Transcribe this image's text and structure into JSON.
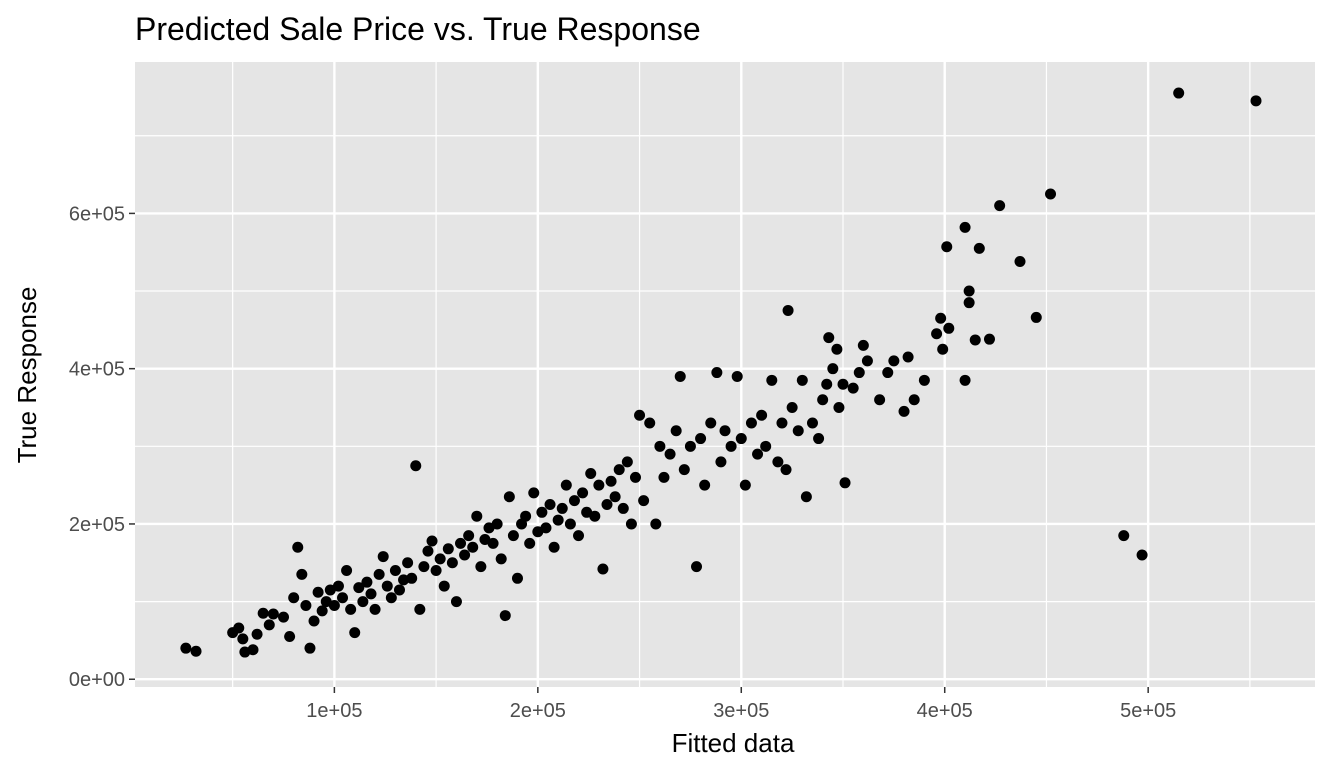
{
  "chart_data": {
    "type": "scatter",
    "title": "Predicted Sale Price vs. True Response",
    "xlabel": "Fitted data",
    "ylabel": "True Response",
    "xlim": [
      2000,
      582000
    ],
    "ylim": [
      -10000,
      795000
    ],
    "x_ticks": [
      {
        "value": 100000,
        "label": "1e+05"
      },
      {
        "value": 200000,
        "label": "2e+05"
      },
      {
        "value": 300000,
        "label": "3e+05"
      },
      {
        "value": 400000,
        "label": "4e+05"
      },
      {
        "value": 500000,
        "label": "5e+05"
      }
    ],
    "y_ticks": [
      {
        "value": 0,
        "label": "0e+00"
      },
      {
        "value": 200000,
        "label": "2e+05"
      },
      {
        "value": 400000,
        "label": "4e+05"
      },
      {
        "value": 600000,
        "label": "6e+05"
      }
    ],
    "grid": true,
    "panel_background": "#e5e5e5",
    "grid_color": "#ffffff",
    "point_color": "#000000",
    "series": [
      {
        "values_note_free": true,
        "points": [
          [
            27000,
            40000
          ],
          [
            32000,
            36000
          ],
          [
            50000,
            60000
          ],
          [
            53000,
            66000
          ],
          [
            55000,
            52000
          ],
          [
            56000,
            35000
          ],
          [
            60000,
            38000
          ],
          [
            62000,
            58000
          ],
          [
            65000,
            85000
          ],
          [
            68000,
            70000
          ],
          [
            70000,
            84000
          ],
          [
            75000,
            80000
          ],
          [
            78000,
            55000
          ],
          [
            80000,
            105000
          ],
          [
            82000,
            170000
          ],
          [
            84000,
            135000
          ],
          [
            86000,
            95000
          ],
          [
            88000,
            40000
          ],
          [
            90000,
            75000
          ],
          [
            92000,
            112000
          ],
          [
            94000,
            88000
          ],
          [
            96000,
            100000
          ],
          [
            98000,
            115000
          ],
          [
            100000,
            95000
          ],
          [
            102000,
            120000
          ],
          [
            104000,
            105000
          ],
          [
            106000,
            140000
          ],
          [
            108000,
            90000
          ],
          [
            110000,
            60000
          ],
          [
            112000,
            118000
          ],
          [
            114000,
            100000
          ],
          [
            116000,
            125000
          ],
          [
            118000,
            110000
          ],
          [
            120000,
            90000
          ],
          [
            122000,
            135000
          ],
          [
            124000,
            158000
          ],
          [
            126000,
            120000
          ],
          [
            128000,
            105000
          ],
          [
            130000,
            140000
          ],
          [
            132000,
            115000
          ],
          [
            134000,
            128000
          ],
          [
            136000,
            150000
          ],
          [
            138000,
            130000
          ],
          [
            140000,
            275000
          ],
          [
            142000,
            90000
          ],
          [
            144000,
            145000
          ],
          [
            146000,
            165000
          ],
          [
            148000,
            178000
          ],
          [
            150000,
            140000
          ],
          [
            152000,
            155000
          ],
          [
            154000,
            120000
          ],
          [
            156000,
            168000
          ],
          [
            158000,
            150000
          ],
          [
            160000,
            100000
          ],
          [
            162000,
            175000
          ],
          [
            164000,
            160000
          ],
          [
            166000,
            185000
          ],
          [
            168000,
            170000
          ],
          [
            170000,
            210000
          ],
          [
            172000,
            145000
          ],
          [
            174000,
            180000
          ],
          [
            176000,
            195000
          ],
          [
            178000,
            175000
          ],
          [
            180000,
            200000
          ],
          [
            182000,
            155000
          ],
          [
            184000,
            82000
          ],
          [
            186000,
            235000
          ],
          [
            188000,
            185000
          ],
          [
            190000,
            130000
          ],
          [
            192000,
            200000
          ],
          [
            194000,
            210000
          ],
          [
            196000,
            175000
          ],
          [
            198000,
            240000
          ],
          [
            200000,
            190000
          ],
          [
            202000,
            215000
          ],
          [
            204000,
            195000
          ],
          [
            206000,
            225000
          ],
          [
            208000,
            170000
          ],
          [
            210000,
            205000
          ],
          [
            212000,
            220000
          ],
          [
            214000,
            250000
          ],
          [
            216000,
            200000
          ],
          [
            218000,
            230000
          ],
          [
            220000,
            185000
          ],
          [
            222000,
            240000
          ],
          [
            224000,
            215000
          ],
          [
            226000,
            265000
          ],
          [
            228000,
            210000
          ],
          [
            230000,
            250000
          ],
          [
            232000,
            142000
          ],
          [
            234000,
            225000
          ],
          [
            236000,
            255000
          ],
          [
            238000,
            235000
          ],
          [
            240000,
            270000
          ],
          [
            242000,
            220000
          ],
          [
            244000,
            280000
          ],
          [
            246000,
            200000
          ],
          [
            248000,
            260000
          ],
          [
            250000,
            340000
          ],
          [
            252000,
            230000
          ],
          [
            255000,
            330000
          ],
          [
            258000,
            200000
          ],
          [
            260000,
            300000
          ],
          [
            262000,
            260000
          ],
          [
            265000,
            290000
          ],
          [
            268000,
            320000
          ],
          [
            270000,
            390000
          ],
          [
            272000,
            270000
          ],
          [
            275000,
            300000
          ],
          [
            278000,
            145000
          ],
          [
            280000,
            310000
          ],
          [
            282000,
            250000
          ],
          [
            285000,
            330000
          ],
          [
            288000,
            395000
          ],
          [
            290000,
            280000
          ],
          [
            292000,
            320000
          ],
          [
            295000,
            300000
          ],
          [
            298000,
            390000
          ],
          [
            300000,
            310000
          ],
          [
            302000,
            250000
          ],
          [
            305000,
            330000
          ],
          [
            308000,
            290000
          ],
          [
            310000,
            340000
          ],
          [
            312000,
            300000
          ],
          [
            315000,
            385000
          ],
          [
            318000,
            280000
          ],
          [
            320000,
            330000
          ],
          [
            322000,
            270000
          ],
          [
            323000,
            475000
          ],
          [
            325000,
            350000
          ],
          [
            328000,
            320000
          ],
          [
            330000,
            385000
          ],
          [
            332000,
            235000
          ],
          [
            335000,
            330000
          ],
          [
            338000,
            310000
          ],
          [
            340000,
            360000
          ],
          [
            342000,
            380000
          ],
          [
            343000,
            440000
          ],
          [
            345000,
            400000
          ],
          [
            347000,
            425000
          ],
          [
            348000,
            350000
          ],
          [
            350000,
            380000
          ],
          [
            351000,
            253000
          ],
          [
            355000,
            375000
          ],
          [
            358000,
            395000
          ],
          [
            360000,
            430000
          ],
          [
            362000,
            410000
          ],
          [
            368000,
            360000
          ],
          [
            372000,
            395000
          ],
          [
            375000,
            410000
          ],
          [
            380000,
            345000
          ],
          [
            382000,
            415000
          ],
          [
            385000,
            360000
          ],
          [
            390000,
            385000
          ],
          [
            396000,
            445000
          ],
          [
            398000,
            465000
          ],
          [
            399000,
            425000
          ],
          [
            401000,
            557000
          ],
          [
            402000,
            452000
          ],
          [
            410000,
            582000
          ],
          [
            410000,
            385000
          ],
          [
            412000,
            500000
          ],
          [
            412000,
            485000
          ],
          [
            415000,
            437000
          ],
          [
            417000,
            555000
          ],
          [
            422000,
            438000
          ],
          [
            427000,
            610000
          ],
          [
            437000,
            538000
          ],
          [
            445000,
            466000
          ],
          [
            452000,
            625000
          ],
          [
            488000,
            185000
          ],
          [
            497000,
            160000
          ],
          [
            515000,
            755000
          ],
          [
            553000,
            745000
          ]
        ]
      }
    ]
  }
}
